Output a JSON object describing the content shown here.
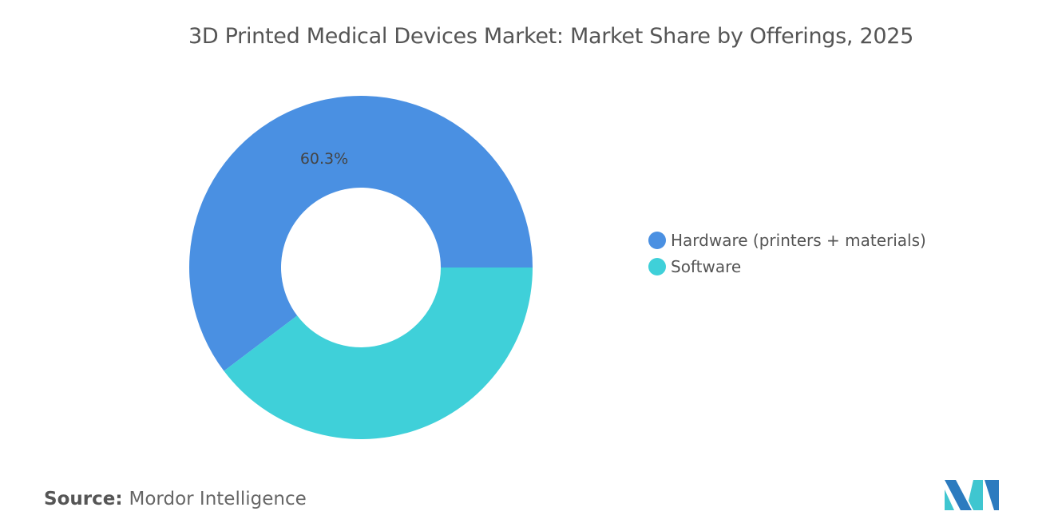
{
  "chart_data": {
    "type": "pie",
    "variant": "donut",
    "title": "3D Printed Medical Devices Market: Market Share by Offerings, 2025",
    "categories": [
      "Hardware (printers + materials)",
      "Software"
    ],
    "values": [
      60.3,
      39.7
    ],
    "data_labels": [
      "60.3%",
      ""
    ],
    "colors": [
      "#4A90E2",
      "#3FD0D9"
    ],
    "legend_position": "right"
  },
  "source": {
    "label": "Source:",
    "value": "Mordor Intelligence"
  },
  "logo": {
    "name": "mordor-intelligence-logo",
    "colors": [
      "#2C7BBF",
      "#3FC6D0"
    ]
  }
}
